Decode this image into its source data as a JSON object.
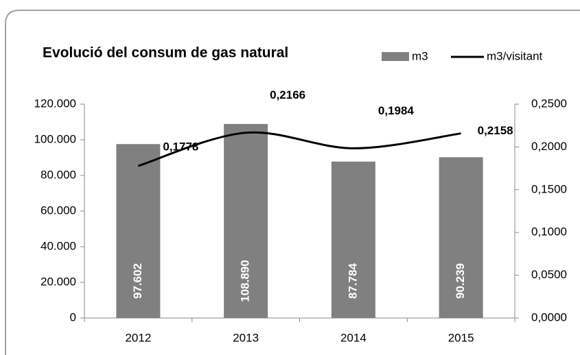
{
  "chart_data": {
    "type": "bar_line",
    "title": "Evolució del consum de gas natural",
    "categories": [
      "2012",
      "2013",
      "2014",
      "2015"
    ],
    "series": [
      {
        "name": "m3",
        "color": "#808080",
        "type": "bar",
        "values": [
          97602,
          108890,
          87784,
          90239
        ],
        "value_labels": [
          "97.602",
          "108.890",
          "87.784",
          "90.239"
        ]
      },
      {
        "name": "m3/visitant",
        "color": "#000000",
        "type": "line",
        "axis": "y2",
        "values": [
          0.1778,
          0.2166,
          0.1984,
          0.2158
        ],
        "value_labels": [
          "0,1778",
          "0,2166",
          "0,1984",
          "0,2158"
        ]
      }
    ],
    "ylim": [
      0,
      120000
    ],
    "yticks": [
      0,
      {
        "value": 20000,
        "label": "20.000"
      },
      {
        "value": 40000,
        "label": "40.000"
      },
      {
        "value": 60000,
        "label": "60.000"
      },
      {
        "value": 80000,
        "label": "80.000"
      },
      {
        "value": 100000,
        "label": "100.000"
      },
      {
        "value": 120000,
        "label": "120.000"
      }
    ],
    "y2lim": [
      0,
      0.25
    ],
    "y2ticks": [
      {
        "value": 0,
        "label": "0,0000"
      },
      {
        "value": 0.05,
        "label": "0,0500"
      },
      {
        "value": 0.1,
        "label": "0,1000"
      },
      {
        "value": 0.15,
        "label": "0,1500"
      },
      {
        "value": 0.2,
        "label": "0,2000"
      },
      {
        "value": 0.25,
        "label": "0,2500"
      }
    ],
    "grid": false,
    "legend": "top-right"
  }
}
